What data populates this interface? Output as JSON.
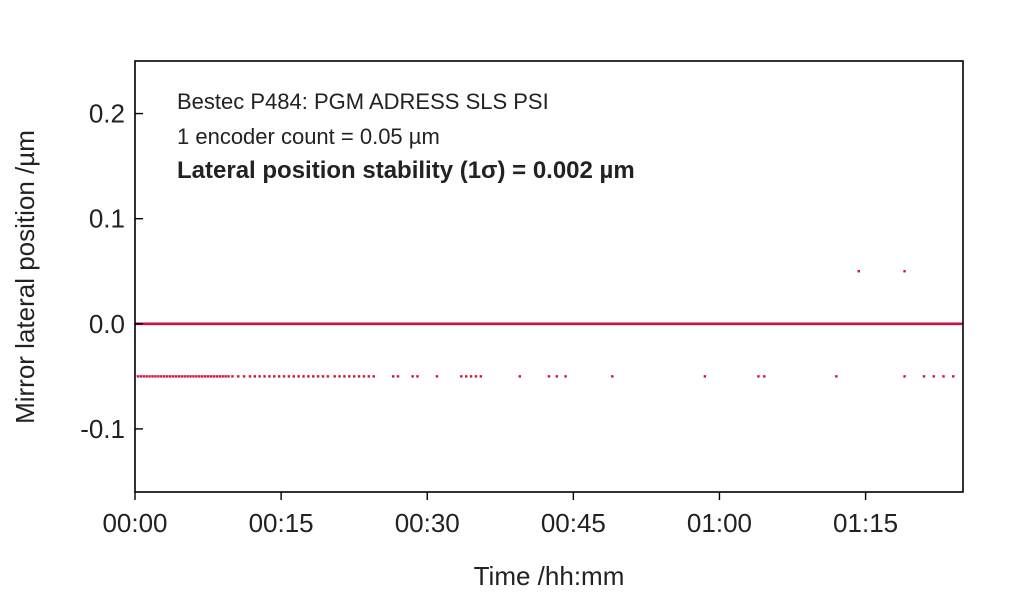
{
  "chart_data": {
    "type": "scatter",
    "title": "",
    "annotations": [
      "Bestec P484: PGM ADRESS SLS PSI",
      "1 encoder count = 0.05 µm",
      "Lateral position stability (1σ) = 0.002 µm"
    ],
    "xlabel": "Time /hh:mm",
    "ylabel": "Mirror lateral position /µm",
    "xlim": [
      0,
      85
    ],
    "ylim": [
      -0.16,
      0.25
    ],
    "x_unit": "minutes",
    "x_ticks": [
      0,
      15,
      30,
      45,
      60,
      75
    ],
    "x_tick_labels": [
      "00:00",
      "00:15",
      "00:30",
      "00:45",
      "01:00",
      "01:15"
    ],
    "y_ticks": [
      0.2,
      0.1,
      0.0,
      -0.1
    ],
    "y_tick_labels": [
      "0.2",
      "0.1",
      "0.0",
      "-0.1"
    ],
    "grid": false,
    "colors": {
      "series": "#d0103a",
      "axis": "#000000"
    },
    "series": [
      {
        "values": [
          [
            0.3,
            -0.05
          ],
          [
            0.6,
            -0.05
          ],
          [
            0.9,
            -0.05
          ],
          [
            1.2,
            -0.05
          ],
          [
            1.5,
            -0.05
          ],
          [
            1.8,
            -0.05
          ],
          [
            2.1,
            -0.05
          ],
          [
            2.4,
            -0.05
          ],
          [
            2.7,
            -0.05
          ],
          [
            3.0,
            -0.05
          ],
          [
            3.3,
            -0.05
          ],
          [
            3.6,
            -0.05
          ],
          [
            3.9,
            -0.05
          ],
          [
            4.2,
            -0.05
          ],
          [
            4.5,
            -0.05
          ],
          [
            4.8,
            -0.05
          ],
          [
            5.1,
            -0.05
          ],
          [
            5.4,
            -0.05
          ],
          [
            5.7,
            -0.05
          ],
          [
            6.0,
            -0.05
          ],
          [
            6.3,
            -0.05
          ],
          [
            6.6,
            -0.05
          ],
          [
            6.9,
            -0.05
          ],
          [
            7.2,
            -0.05
          ],
          [
            7.5,
            -0.05
          ],
          [
            7.8,
            -0.05
          ],
          [
            8.1,
            -0.05
          ],
          [
            8.4,
            -0.05
          ],
          [
            8.7,
            -0.05
          ],
          [
            9.0,
            -0.05
          ],
          [
            9.3,
            -0.05
          ],
          [
            9.6,
            -0.05
          ],
          [
            10.0,
            -0.05
          ],
          [
            10.6,
            -0.05
          ],
          [
            11.2,
            -0.05
          ],
          [
            11.8,
            -0.05
          ],
          [
            12.3,
            -0.05
          ],
          [
            12.8,
            -0.05
          ],
          [
            13.3,
            -0.05
          ],
          [
            13.8,
            -0.05
          ],
          [
            14.3,
            -0.05
          ],
          [
            14.8,
            -0.05
          ],
          [
            15.3,
            -0.05
          ],
          [
            15.8,
            -0.05
          ],
          [
            16.3,
            -0.05
          ],
          [
            16.8,
            -0.05
          ],
          [
            17.3,
            -0.05
          ],
          [
            17.8,
            -0.05
          ],
          [
            18.3,
            -0.05
          ],
          [
            18.8,
            -0.05
          ],
          [
            19.3,
            -0.05
          ],
          [
            19.8,
            -0.05
          ],
          [
            20.5,
            -0.05
          ],
          [
            21.0,
            -0.05
          ],
          [
            21.5,
            -0.05
          ],
          [
            22.0,
            -0.05
          ],
          [
            22.5,
            -0.05
          ],
          [
            23.0,
            -0.05
          ],
          [
            23.5,
            -0.05
          ],
          [
            24.0,
            -0.05
          ],
          [
            24.5,
            -0.05
          ],
          [
            26.5,
            -0.05
          ],
          [
            27.0,
            -0.05
          ],
          [
            28.5,
            -0.05
          ],
          [
            29.0,
            -0.05
          ],
          [
            31.0,
            -0.05
          ],
          [
            33.5,
            -0.05
          ],
          [
            34.0,
            -0.05
          ],
          [
            34.5,
            -0.05
          ],
          [
            35.0,
            -0.05
          ],
          [
            35.5,
            -0.05
          ],
          [
            39.5,
            -0.05
          ],
          [
            42.5,
            -0.05
          ],
          [
            43.3,
            -0.05
          ],
          [
            44.2,
            -0.05
          ],
          [
            49.0,
            -0.05
          ],
          [
            58.5,
            -0.05
          ],
          [
            64.0,
            -0.05
          ],
          [
            64.6,
            -0.05
          ],
          [
            72.0,
            -0.05
          ],
          [
            79.0,
            -0.05
          ],
          [
            81.0,
            -0.05
          ],
          [
            82.0,
            -0.05
          ],
          [
            83.0,
            -0.05
          ],
          [
            84.0,
            -0.05
          ],
          [
            74.3,
            0.05
          ],
          [
            79.0,
            0.05
          ]
        ]
      }
    ],
    "mean_line": 0.0
  }
}
